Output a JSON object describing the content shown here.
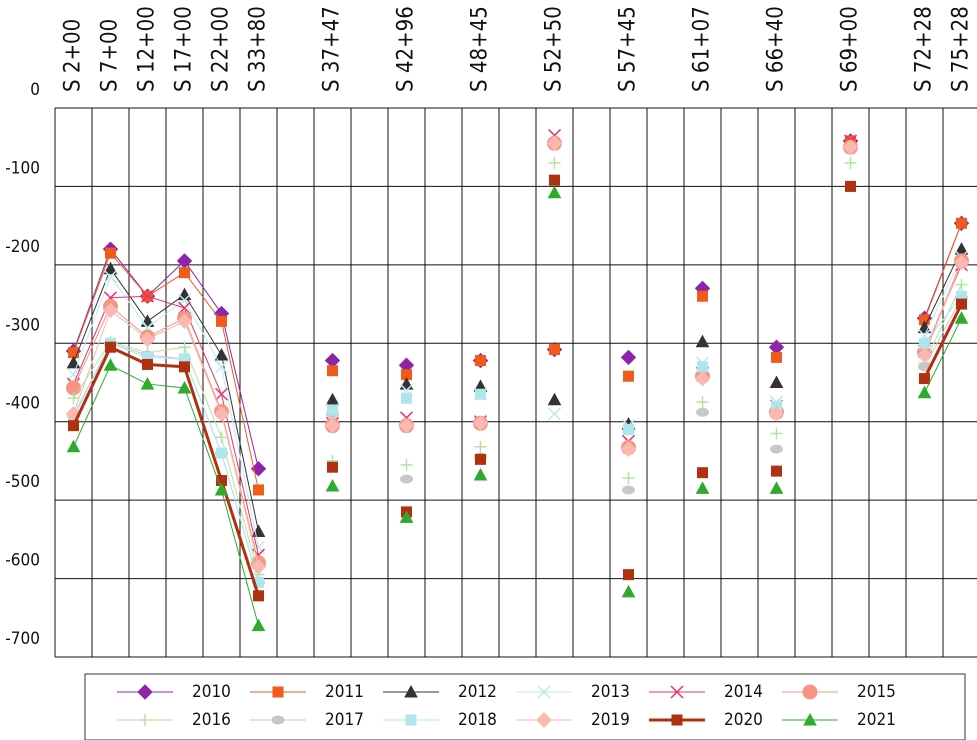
{
  "chart_data": {
    "type": "line",
    "categories": [
      "S 2+00",
      "S 7+00",
      "S 12+00",
      "S 17+00",
      "S 22+00",
      "S 33+80",
      null,
      "S 37+47",
      null,
      "S 42+96",
      null,
      "S 48+45",
      null,
      "S 52+50",
      null,
      "S 57+45",
      null,
      "S 61+07",
      null,
      "S 66+40",
      null,
      "S 69+00",
      null,
      "S 72+28",
      "S 75+28"
    ],
    "ylim": [
      -700,
      0
    ],
    "yticks": [
      0,
      -100,
      -200,
      -300,
      -400,
      -500,
      -600,
      -700
    ],
    "grid": true,
    "series": [
      {
        "name": "2010",
        "color": "#8e24aa",
        "marker": "diamond",
        "line_width": 1,
        "values": [
          -310,
          -180,
          -240,
          -195,
          -262,
          -460,
          null,
          -322,
          null,
          -328,
          null,
          -322,
          null,
          -308,
          null,
          -318,
          null,
          -230,
          null,
          -305,
          null,
          -42,
          null,
          -268,
          -147
        ]
      },
      {
        "name": "2011",
        "color": "#f05a1a",
        "marker": "square",
        "line_width": 1,
        "values": [
          -312,
          -185,
          -240,
          -210,
          -272,
          -487,
          null,
          -335,
          null,
          -340,
          null,
          -322,
          null,
          -308,
          null,
          -342,
          null,
          -240,
          null,
          -318,
          null,
          -42,
          null,
          -270,
          -147
        ]
      },
      {
        "name": "2012",
        "color": "#333333",
        "marker": "triangle",
        "line_width": 1,
        "values": [
          -325,
          -205,
          -272,
          -238,
          -315,
          -540,
          null,
          -372,
          null,
          -352,
          null,
          -355,
          null,
          -372,
          null,
          -403,
          null,
          -298,
          null,
          -350,
          null,
          null,
          null,
          -280,
          -180
        ]
      },
      {
        "name": "2013",
        "color": "#bfeaee",
        "marker": "x",
        "line_width": 1,
        "values": [
          -340,
          -215,
          -280,
          -245,
          -330,
          -560,
          null,
          -385,
          null,
          -360,
          null,
          -365,
          null,
          -390,
          null,
          -405,
          null,
          -325,
          null,
          -375,
          null,
          null,
          null,
          -290,
          -190
        ]
      },
      {
        "name": "2014",
        "color": "#e8336e",
        "marker": "x",
        "line_width": 1,
        "values": [
          -352,
          -242,
          -240,
          -255,
          -365,
          -570,
          null,
          -402,
          null,
          -395,
          null,
          -400,
          null,
          -35,
          null,
          -425,
          null,
          -338,
          null,
          -380,
          null,
          -42,
          null,
          -310,
          -200
        ]
      },
      {
        "name": "2015",
        "color": "#f79482",
        "marker": "circle",
        "line_width": 1,
        "values": [
          -357,
          -253,
          -292,
          -268,
          -387,
          -580,
          null,
          -405,
          null,
          -405,
          null,
          -402,
          null,
          -45,
          null,
          -433,
          null,
          -342,
          null,
          -388,
          null,
          -50,
          null,
          -312,
          -195
        ]
      },
      {
        "name": "2016",
        "color": "#b2e3a2",
        "marker": "plus",
        "line_width": 1,
        "values": [
          -370,
          -298,
          -312,
          -305,
          -420,
          -595,
          null,
          -450,
          null,
          -455,
          null,
          -432,
          null,
          -70,
          null,
          -472,
          null,
          -375,
          null,
          -415,
          null,
          -70,
          null,
          -325,
          -225
        ]
      },
      {
        "name": "2017",
        "color": "#c8c8c8",
        "marker": "oval",
        "line_width": 1,
        "values": [
          -392,
          -300,
          -315,
          -320,
          -440,
          -605,
          null,
          -390,
          null,
          -473,
          null,
          -445,
          null,
          null,
          null,
          -487,
          null,
          -388,
          null,
          -435,
          null,
          null,
          null,
          -330,
          -242
        ]
      },
      {
        "name": "2018",
        "color": "#aee6ee",
        "marker": "square",
        "line_width": 1,
        "values": [
          -395,
          -300,
          -318,
          -320,
          -440,
          -605,
          null,
          -385,
          null,
          -370,
          null,
          -365,
          null,
          null,
          null,
          -410,
          null,
          -330,
          null,
          -380,
          null,
          null,
          null,
          -300,
          -240
        ]
      },
      {
        "name": "2019",
        "color": "#f9b8b0",
        "marker": "diamond",
        "line_width": 1,
        "values": [
          -390,
          -258,
          -295,
          -272,
          -390,
          -585,
          null,
          -405,
          null,
          -405,
          null,
          -402,
          null,
          -45,
          null,
          -435,
          null,
          -345,
          null,
          -390,
          null,
          -50,
          null,
          -315,
          -197
        ]
      },
      {
        "name": "2020",
        "color": "#b03010",
        "marker": "square",
        "line_width": 3,
        "values": [
          -405,
          -305,
          -327,
          -330,
          -475,
          -622,
          null,
          -458,
          null,
          -515,
          null,
          -448,
          null,
          -92,
          null,
          -595,
          null,
          -465,
          null,
          -463,
          null,
          -100,
          null,
          -345,
          -250
        ]
      },
      {
        "name": "2021",
        "color": "#2eaa2e",
        "marker": "triangle",
        "line_width": 1,
        "values": [
          -432,
          -328,
          -352,
          -357,
          -487,
          -660,
          null,
          -482,
          null,
          -522,
          null,
          -468,
          null,
          -108,
          null,
          -617,
          null,
          -485,
          null,
          -485,
          null,
          null,
          null,
          -363,
          -268
        ]
      }
    ]
  }
}
